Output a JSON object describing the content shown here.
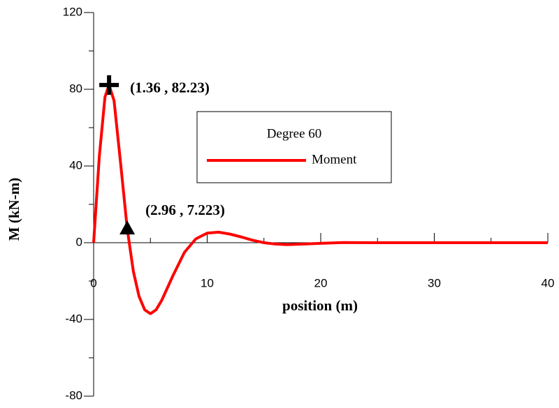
{
  "chart_data": {
    "type": "line",
    "xlabel": "position (m)",
    "ylabel": "M (kN-m)",
    "xlim": [
      0,
      40
    ],
    "xticks": [
      0,
      10,
      20,
      30,
      40
    ],
    "xminorticks": [
      5,
      15,
      25,
      35
    ],
    "ylim": [
      -80,
      120
    ],
    "yticks": [
      -80,
      -40,
      0,
      40,
      80,
      120
    ],
    "yminorticks": [
      -60,
      -20,
      20,
      60,
      100
    ],
    "legend_title": "Degree 60",
    "legend_position": "center",
    "series": [
      {
        "name": "Moment",
        "color": "#ff0000",
        "x": [
          0,
          0.5,
          1,
          1.36,
          1.8,
          2.4,
          2.96,
          3.5,
          4,
          4.5,
          5,
          5.5,
          6,
          7,
          8,
          9,
          10,
          11,
          12,
          13,
          14,
          15,
          16,
          17,
          18,
          20,
          22,
          25,
          30,
          35,
          40
        ],
        "values": [
          0,
          45,
          76,
          82.23,
          74,
          40,
          7.223,
          -15,
          -28,
          -35,
          -37,
          -35,
          -30,
          -17,
          -5,
          2,
          5,
          5.5,
          4.5,
          3,
          1.3,
          0,
          -0.7,
          -1,
          -0.8,
          -0.3,
          0.1,
          0,
          0,
          0,
          0
        ]
      }
    ],
    "annotations": [
      {
        "text": "(1.36 , 82.23)",
        "x": 1.36,
        "y": 82.23,
        "marker": "plus"
      },
      {
        "text": "(2.96 , 7.223)",
        "x": 2.96,
        "y": 7.223,
        "marker": "triangle"
      }
    ]
  }
}
